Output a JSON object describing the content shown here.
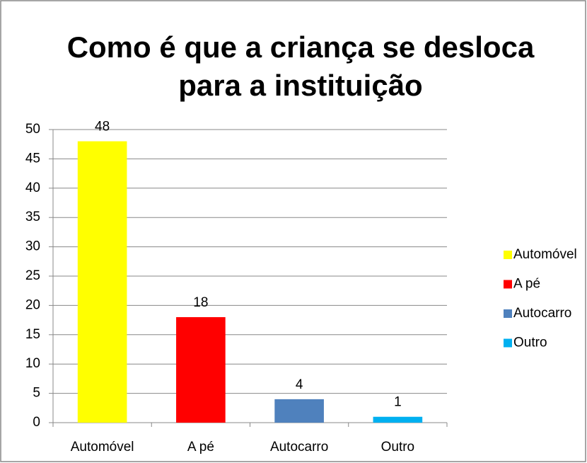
{
  "chart_data": {
    "type": "bar",
    "title": "Como é que a criança se desloca para a instituição",
    "categories": [
      "Automóvel",
      "A pé",
      "Autocarro",
      "Outro"
    ],
    "values": [
      48,
      18,
      4,
      1
    ],
    "colors": [
      "#ffff00",
      "#ff0000",
      "#4f81bd",
      "#00b0f0"
    ],
    "ylim": [
      0,
      50
    ],
    "yticks": [
      0,
      5,
      10,
      15,
      20,
      25,
      30,
      35,
      40,
      45,
      50
    ],
    "grid": true,
    "legend": "right"
  }
}
